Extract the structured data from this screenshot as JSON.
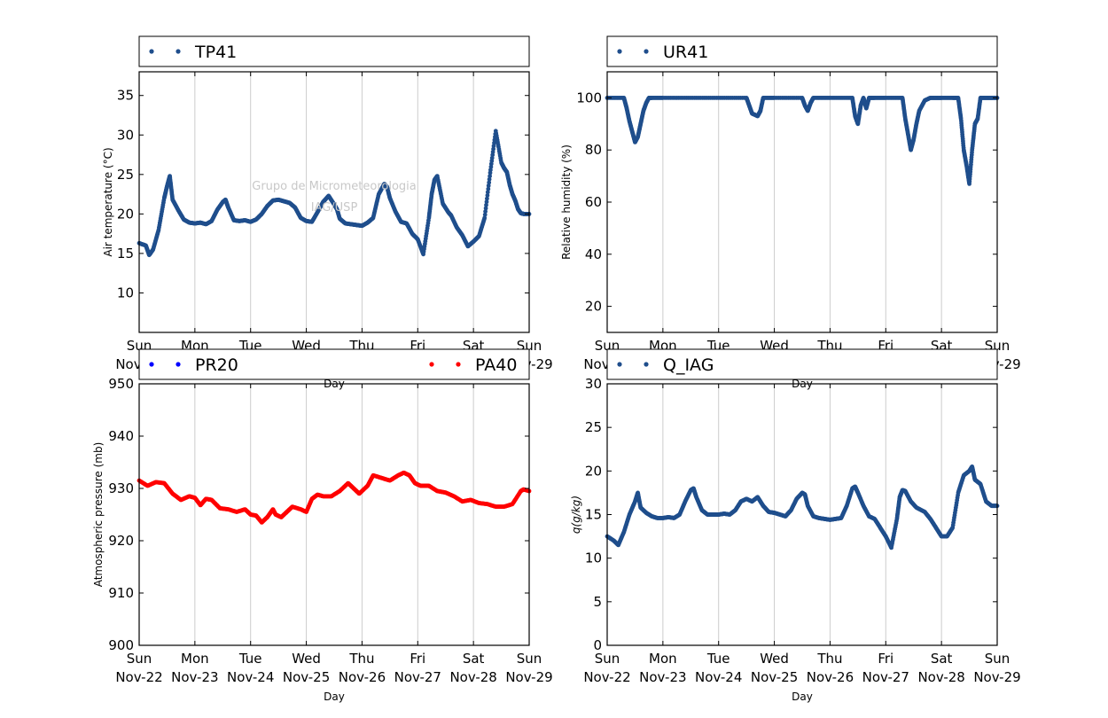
{
  "figure": {
    "watermark": [
      "Grupo de Micrometeorologia",
      "IAG/USP"
    ],
    "x_axis": {
      "label": "Day",
      "days": [
        "Sun",
        "Mon",
        "Tue",
        "Wed",
        "Thu",
        "Fri",
        "Sat",
        "Sun"
      ],
      "dates": [
        "Nov-22",
        "Nov-23",
        "Nov-24",
        "Nov-25",
        "Nov-26",
        "Nov-27",
        "Nov-28",
        "Nov-29"
      ]
    }
  },
  "chart_data": [
    {
      "id": "temperature",
      "type": "scatter",
      "ylabel": "Air temperature (°C)",
      "xlabel": "Day",
      "ylim": [
        5,
        38
      ],
      "yticks": [
        10,
        15,
        20,
        25,
        30,
        35
      ],
      "xlim": [
        0,
        7
      ],
      "grid": "vertical",
      "legend": "top",
      "series": [
        {
          "name": "TP41",
          "color": "#1f4e8c",
          "x": [
            0,
            0.12,
            0.18,
            0.25,
            0.35,
            0.45,
            0.5,
            0.55,
            0.6,
            0.7,
            0.8,
            0.9,
            1.0,
            1.1,
            1.2,
            1.3,
            1.4,
            1.5,
            1.55,
            1.6,
            1.7,
            1.8,
            1.9,
            2.0,
            2.1,
            2.2,
            2.3,
            2.4,
            2.5,
            2.6,
            2.7,
            2.8,
            2.9,
            3.0,
            3.1,
            3.2,
            3.3,
            3.4,
            3.5,
            3.55,
            3.6,
            3.7,
            3.8,
            3.9,
            4.0,
            4.1,
            4.2,
            4.3,
            4.4,
            4.45,
            4.5,
            4.6,
            4.7,
            4.8,
            4.9,
            5.0,
            5.1,
            5.2,
            5.25,
            5.3,
            5.35,
            5.45,
            5.55,
            5.6,
            5.7,
            5.8,
            5.9,
            6.0,
            6.1,
            6.2,
            6.3,
            6.4,
            6.5,
            6.55,
            6.6,
            6.65,
            6.7,
            6.75,
            6.8,
            6.85,
            6.9,
            7.0
          ],
          "y": [
            16.3,
            16,
            14.8,
            15.5,
            18,
            22,
            23.5,
            24.8,
            21.8,
            20.5,
            19.3,
            18.9,
            18.8,
            18.9,
            18.7,
            19.1,
            20.5,
            21.5,
            21.8,
            20.8,
            19.2,
            19.1,
            19.2,
            19,
            19.3,
            20,
            21,
            21.7,
            21.8,
            21.6,
            21.4,
            20.8,
            19.5,
            19.1,
            19,
            20.2,
            21.5,
            22.3,
            21.2,
            20.6,
            19.4,
            18.8,
            18.7,
            18.6,
            18.5,
            18.9,
            19.5,
            22.5,
            23.8,
            23.4,
            22,
            20.3,
            19,
            18.8,
            17.5,
            16.8,
            14.9,
            19.5,
            22.5,
            24.3,
            24.8,
            21.3,
            20.2,
            19.8,
            18.3,
            17.3,
            15.9,
            16.5,
            17.2,
            19.5,
            25.2,
            30.5,
            26.5,
            25.8,
            25.3,
            23.7,
            22.5,
            21.7,
            20.6,
            20.1,
            20,
            20
          ]
        }
      ]
    },
    {
      "id": "humidity",
      "type": "scatter",
      "ylabel": "Relative humidity (%)",
      "xlabel": "Day",
      "ylim": [
        10,
        110
      ],
      "yticks": [
        20,
        40,
        60,
        80,
        100
      ],
      "xlim": [
        0,
        7
      ],
      "grid": "vertical",
      "legend": "top",
      "series": [
        {
          "name": "UR41",
          "color": "#1f4e8c",
          "x": [
            0,
            0.3,
            0.35,
            0.4,
            0.45,
            0.5,
            0.55,
            0.6,
            0.65,
            0.7,
            0.75,
            0.8,
            1.0,
            1.5,
            2.0,
            2.5,
            2.55,
            2.6,
            2.7,
            2.75,
            2.8,
            3.0,
            3.5,
            3.55,
            3.6,
            3.65,
            3.7,
            4.0,
            4.4,
            4.45,
            4.5,
            4.55,
            4.6,
            4.65,
            4.7,
            4.8,
            5.0,
            5.3,
            5.35,
            5.4,
            5.45,
            5.5,
            5.55,
            5.6,
            5.7,
            5.8,
            5.9,
            6.0,
            6.2,
            6.3,
            6.35,
            6.4,
            6.45,
            6.5,
            6.55,
            6.6,
            6.65,
            6.7,
            6.8,
            6.9,
            7.0
          ],
          "y": [
            100,
            100,
            96,
            91,
            87,
            83,
            85,
            90,
            95,
            98,
            100,
            100,
            100,
            100,
            100,
            100,
            97,
            94,
            93,
            95,
            100,
            100,
            100,
            97,
            95,
            98,
            100,
            100,
            100,
            93,
            90,
            97,
            100,
            96,
            100,
            100,
            100,
            100,
            92,
            86,
            80,
            84,
            90,
            95,
            99,
            100,
            100,
            100,
            100,
            100,
            92,
            80,
            74,
            67,
            80,
            90,
            92,
            100,
            100,
            100,
            100
          ]
        }
      ]
    },
    {
      "id": "pressure",
      "type": "scatter",
      "ylabel": "Atmospheric pressure (mb)",
      "xlabel": "Day",
      "ylim": [
        900,
        950
      ],
      "yticks": [
        900,
        910,
        920,
        930,
        940,
        950
      ],
      "xlim": [
        0,
        7
      ],
      "grid": "vertical",
      "legend": "top",
      "series": [
        {
          "name": "PR20",
          "color": "#0000ff",
          "x": [],
          "y": []
        },
        {
          "name": "PA40",
          "color": "#ff0000",
          "x": [
            0,
            0.15,
            0.3,
            0.45,
            0.6,
            0.75,
            0.9,
            1.0,
            1.1,
            1.2,
            1.3,
            1.45,
            1.6,
            1.75,
            1.9,
            2.0,
            2.1,
            2.2,
            2.3,
            2.4,
            2.45,
            2.55,
            2.65,
            2.75,
            2.9,
            3.0,
            3.1,
            3.2,
            3.3,
            3.45,
            3.6,
            3.75,
            3.85,
            3.95,
            4.1,
            4.2,
            4.35,
            4.5,
            4.65,
            4.75,
            4.85,
            4.95,
            5.05,
            5.2,
            5.35,
            5.5,
            5.65,
            5.8,
            5.95,
            6.1,
            6.25,
            6.4,
            6.55,
            6.7,
            6.85,
            6.9,
            7.0
          ],
          "y": [
            931.5,
            930.5,
            931.2,
            931,
            929,
            927.8,
            928.5,
            928.2,
            926.8,
            928,
            927.8,
            926.2,
            926,
            925.5,
            926,
            925,
            924.8,
            923.5,
            924.5,
            926,
            925,
            924.5,
            925.5,
            926.5,
            926,
            925.5,
            928,
            928.8,
            928.5,
            928.5,
            929.5,
            931,
            930,
            929,
            930.5,
            932.5,
            932,
            931.5,
            932.5,
            933,
            932.5,
            931,
            930.5,
            930.5,
            929.5,
            929.2,
            928.5,
            927.5,
            927.8,
            927.2,
            927,
            926.5,
            926.5,
            927,
            929.5,
            929.8,
            929.5
          ]
        }
      ]
    },
    {
      "id": "specific_humidity",
      "type": "scatter",
      "ylabel": "q(g/kg)",
      "xlabel": "Day",
      "ylim": [
        0,
        30
      ],
      "yticks": [
        0,
        5,
        10,
        15,
        20,
        25,
        30
      ],
      "xlim": [
        0,
        7
      ],
      "grid": "vertical",
      "legend": "top",
      "series": [
        {
          "name": "Q_IAG",
          "color": "#1f4e8c",
          "x": [
            0,
            0.12,
            0.2,
            0.3,
            0.4,
            0.5,
            0.55,
            0.6,
            0.7,
            0.8,
            0.9,
            1.0,
            1.1,
            1.2,
            1.3,
            1.4,
            1.5,
            1.55,
            1.6,
            1.7,
            1.8,
            1.9,
            2.0,
            2.1,
            2.2,
            2.3,
            2.4,
            2.5,
            2.6,
            2.7,
            2.8,
            2.9,
            3.0,
            3.1,
            3.2,
            3.3,
            3.4,
            3.5,
            3.55,
            3.6,
            3.7,
            3.8,
            3.9,
            4.0,
            4.1,
            4.2,
            4.3,
            4.4,
            4.45,
            4.5,
            4.6,
            4.7,
            4.8,
            4.9,
            5.0,
            5.1,
            5.2,
            5.25,
            5.3,
            5.35,
            5.45,
            5.55,
            5.7,
            5.8,
            5.9,
            6.0,
            6.1,
            6.2,
            6.3,
            6.4,
            6.5,
            6.55,
            6.6,
            6.7,
            6.8,
            6.9,
            7.0
          ],
          "y": [
            12.5,
            12,
            11.5,
            13,
            15,
            16.5,
            17.5,
            15.8,
            15.2,
            14.8,
            14.6,
            14.6,
            14.7,
            14.6,
            15,
            16.5,
            17.8,
            18,
            17,
            15.5,
            15,
            15,
            15,
            15.1,
            15,
            15.5,
            16.5,
            16.8,
            16.5,
            17,
            16,
            15.3,
            15.2,
            15,
            14.8,
            15.5,
            16.8,
            17.5,
            17.3,
            16,
            14.8,
            14.6,
            14.5,
            14.4,
            14.5,
            14.6,
            16,
            18,
            18.2,
            17.5,
            16,
            14.8,
            14.5,
            13.5,
            12.5,
            11.2,
            14.5,
            17,
            17.8,
            17.7,
            16.5,
            15.8,
            15.3,
            14.5,
            13.5,
            12.5,
            12.5,
            13.5,
            17.5,
            19.5,
            20,
            20.5,
            19,
            18.5,
            16.5,
            16,
            16
          ]
        }
      ]
    }
  ]
}
